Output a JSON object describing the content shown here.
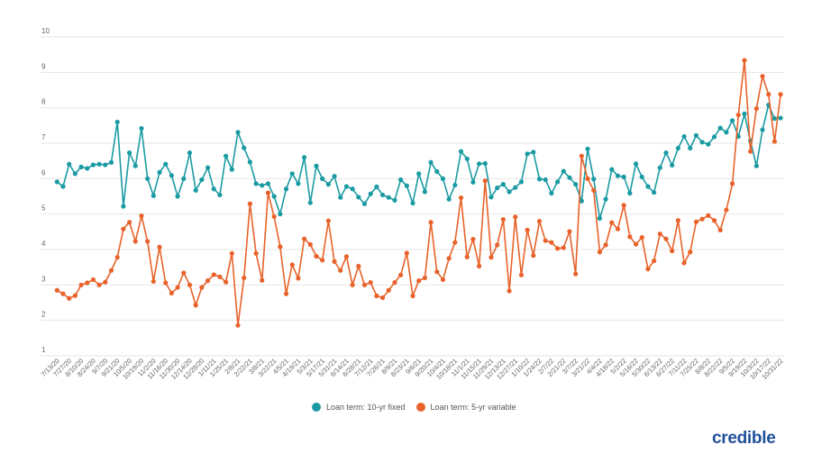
{
  "chart_data": {
    "type": "line",
    "title": "",
    "xlabel": "",
    "ylabel": "",
    "ylim": [
      1,
      10
    ],
    "yticks": [
      "1",
      "2",
      "3",
      "4",
      "5",
      "6",
      "7",
      "8",
      "9",
      "10"
    ],
    "grid": true,
    "legend_position": "bottom",
    "x_tick_labels": [
      "7/13/20",
      "7/27/20",
      "8/10/20",
      "8/24/20",
      "9/7/20",
      "9/21/20",
      "10/5/20",
      "10/19/20",
      "11/2/20",
      "11/16/20",
      "11/30/20",
      "12/14/20",
      "12/28/20",
      "1/11/21",
      "1/25/21",
      "2/8/21",
      "2/22/21",
      "3/8/21",
      "3/22/21",
      "4/5/21",
      "4/19/21",
      "5/3/21",
      "5/17/21",
      "5/31/21",
      "6/14/21",
      "6/28/21",
      "7/12/21",
      "7/26/21",
      "8/9/21",
      "8/23/21",
      "9/6/21",
      "9/20/21",
      "10/4/21",
      "10/18/21",
      "11/1/21",
      "11/15/21",
      "11/29/21",
      "12/13/21",
      "12/27/21",
      "1/10/22",
      "1/24/22",
      "2/7/22",
      "2/21/22",
      "3/7/22",
      "3/21/22",
      "4/4/22",
      "4/18/22",
      "5/2/22",
      "5/16/22",
      "5/30/22",
      "6/13/22",
      "6/27/22",
      "7/11/22",
      "7/25/22",
      "8/8/22",
      "8/22/22",
      "9/5/22",
      "9/19/22",
      "10/3/22",
      "10/17/22",
      "10/31/22"
    ],
    "series": [
      {
        "name": "Loan term: 10-yr fixed",
        "color": "#1a9ba3",
        "values": [
          5.91,
          5.78,
          6.41,
          6.14,
          6.33,
          6.29,
          6.39,
          6.41,
          6.39,
          6.46,
          7.6,
          5.22,
          6.73,
          6.36,
          7.42,
          6.0,
          5.52,
          6.18,
          6.41,
          6.09,
          5.5,
          6.0,
          6.73,
          5.67,
          5.97,
          6.31,
          5.71,
          5.54,
          6.64,
          6.26,
          7.31,
          6.87,
          6.47,
          5.86,
          5.81,
          5.86,
          5.5,
          5.0,
          5.71,
          6.14,
          5.86,
          6.6,
          5.32,
          6.36,
          6.0,
          5.84,
          6.07,
          5.47,
          5.78,
          5.71,
          5.48,
          5.29,
          5.57,
          5.77,
          5.54,
          5.47,
          5.39,
          5.97,
          5.8,
          5.31,
          6.14,
          5.63,
          6.46,
          6.2,
          6.0,
          5.42,
          5.82,
          6.77,
          6.56,
          5.9,
          6.42,
          6.43,
          5.48,
          5.74,
          5.84,
          5.63,
          5.75,
          5.91,
          6.7,
          6.75,
          5.99,
          5.97,
          5.59,
          5.91,
          6.21,
          6.03,
          5.84,
          5.37,
          6.84,
          5.99,
          4.88,
          5.42,
          6.26,
          6.08,
          6.05,
          5.59,
          6.42,
          6.05,
          5.78,
          5.61,
          6.31,
          6.73,
          6.38,
          6.86,
          7.19,
          6.86,
          7.22,
          7.03,
          6.97,
          7.18,
          7.43,
          7.31,
          7.64,
          7.19,
          7.83,
          7.07,
          6.36,
          7.38,
          8.08,
          7.7,
          7.71
        ]
      },
      {
        "name": "Loan term: 5-yr variable",
        "color": "#e8622a",
        "values": [
          2.85,
          2.75,
          2.62,
          2.7,
          3.0,
          3.06,
          3.15,
          3.0,
          3.08,
          3.41,
          3.78,
          4.58,
          4.77,
          4.23,
          4.95,
          4.23,
          3.1,
          4.07,
          3.06,
          2.77,
          2.93,
          3.34,
          3.0,
          2.43,
          2.93,
          3.12,
          3.29,
          3.23,
          3.08,
          3.89,
          1.86,
          3.2,
          5.29,
          3.89,
          3.13,
          5.6,
          4.93,
          4.08,
          2.75,
          3.57,
          3.19,
          4.3,
          4.14,
          3.81,
          3.7,
          4.81,
          3.66,
          3.41,
          3.8,
          3.0,
          3.53,
          3.0,
          3.07,
          2.69,
          2.64,
          2.85,
          3.07,
          3.28,
          3.9,
          2.69,
          3.12,
          3.2,
          4.77,
          3.37,
          3.15,
          3.75,
          4.2,
          5.46,
          3.79,
          4.29,
          3.53,
          5.94,
          3.78,
          4.13,
          4.85,
          2.83,
          4.92,
          3.28,
          4.55,
          3.83,
          4.8,
          4.25,
          4.2,
          4.03,
          4.05,
          4.51,
          3.31,
          6.64,
          6.0,
          5.67,
          3.93,
          4.13,
          4.76,
          4.58,
          5.25,
          4.36,
          4.15,
          4.34,
          3.45,
          3.68,
          4.44,
          4.3,
          3.96,
          4.82,
          3.62,
          3.93,
          4.78,
          4.86,
          4.96,
          4.82,
          4.55,
          5.12,
          5.86,
          7.8,
          9.34,
          6.77,
          7.98,
          8.89,
          8.38,
          7.05,
          8.38
        ]
      }
    ]
  },
  "legend": {
    "items": [
      "Loan term: 10-yr fixed",
      "Loan term: 5-yr variable"
    ]
  },
  "logo": {
    "text": "credible",
    "color": "#1f4f9c"
  }
}
